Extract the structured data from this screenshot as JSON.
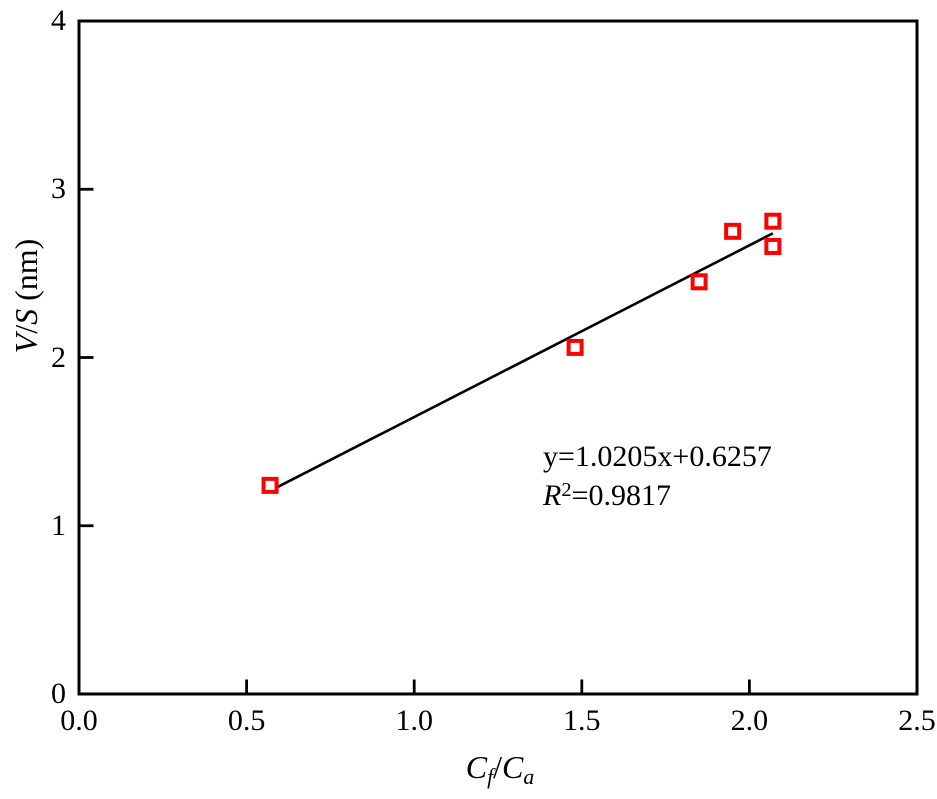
{
  "figure": {
    "background": "#ffffff"
  },
  "chart_data": {
    "type": "scatter",
    "title": "",
    "xlabel": "Cf/Ca",
    "ylabel": "V/S (nm)",
    "xlim": [
      0.0,
      2.5
    ],
    "ylim": [
      0,
      4
    ],
    "grid": false,
    "legend": "none",
    "axis_color": "#000000",
    "line_color": "#000000",
    "marker_color": "#ff0000",
    "marker_shape": "open-square",
    "x_ticks": [
      {
        "v": 0.0,
        "label": "0.0"
      },
      {
        "v": 0.5,
        "label": "0.5"
      },
      {
        "v": 1.0,
        "label": "1.0"
      },
      {
        "v": 1.5,
        "label": "1.5"
      },
      {
        "v": 2.0,
        "label": "2.0"
      },
      {
        "v": 2.5,
        "label": "2.5"
      }
    ],
    "y_ticks": [
      {
        "v": 0,
        "label": "0"
      },
      {
        "v": 1,
        "label": "1"
      },
      {
        "v": 2,
        "label": "2"
      },
      {
        "v": 3,
        "label": "3"
      },
      {
        "v": 4,
        "label": "4"
      }
    ],
    "points": [
      {
        "x": 0.57,
        "y": 1.24
      },
      {
        "x": 1.48,
        "y": 2.06
      },
      {
        "x": 1.85,
        "y": 2.45
      },
      {
        "x": 1.95,
        "y": 2.75
      },
      {
        "x": 2.07,
        "y": 2.81
      },
      {
        "x": 2.07,
        "y": 2.66
      }
    ],
    "fit": {
      "slope": 1.0205,
      "intercept": 0.6257,
      "x_start": 0.59,
      "x_end": 2.07
    },
    "xlabel_parts": [
      {
        "t": "C",
        "i": true
      },
      {
        "t": "f",
        "i": true,
        "sub": true
      },
      {
        "t": "/"
      },
      {
        "t": "C",
        "i": true
      },
      {
        "t": "a",
        "i": true,
        "sub": true
      }
    ],
    "ylabel_parts": [
      {
        "t": "V",
        "i": true
      },
      {
        "t": "/"
      },
      {
        "t": "S",
        "i": true
      },
      {
        "t": " (nm)"
      }
    ],
    "annotation": {
      "line1": "y=1.0205x+0.6257",
      "line2": "R2=0.9817",
      "line1_parts": [
        {
          "t": "y=1.0205x+0.6257"
        }
      ],
      "line2_parts": [
        {
          "t": "R",
          "i": true
        },
        {
          "t": "2",
          "sup": true
        },
        {
          "t": "=0.9817"
        }
      ]
    }
  }
}
